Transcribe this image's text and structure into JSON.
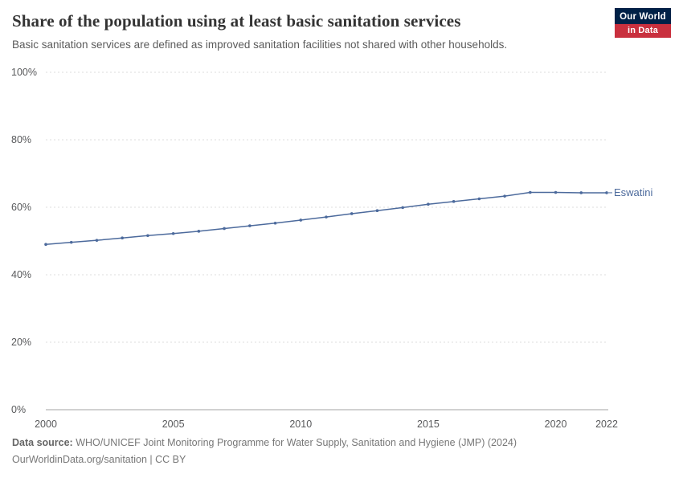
{
  "header": {
    "title": "Share of the population using at least basic sanitation services",
    "subtitle": "Basic sanitation services are defined as improved sanitation facilities not shared with other households."
  },
  "logo": {
    "line1": "Our World",
    "line2": "in Data"
  },
  "chart_data": {
    "type": "line",
    "title": "Share of the population using at least basic sanitation services",
    "x": [
      2000,
      2001,
      2002,
      2003,
      2004,
      2005,
      2006,
      2007,
      2008,
      2009,
      2010,
      2011,
      2012,
      2013,
      2014,
      2015,
      2016,
      2017,
      2018,
      2019,
      2020,
      2021,
      2022
    ],
    "series": [
      {
        "name": "Eswatini",
        "color": "#4c6a9c",
        "values": [
          49.0,
          49.6,
          50.2,
          50.9,
          51.6,
          52.2,
          52.9,
          53.7,
          54.5,
          55.3,
          56.2,
          57.1,
          58.1,
          59.0,
          59.9,
          60.9,
          61.7,
          62.5,
          63.3,
          64.4,
          64.4,
          64.3,
          64.3
        ]
      }
    ],
    "ylim": [
      0,
      100
    ],
    "yticks": [
      0,
      20,
      40,
      60,
      80,
      100
    ],
    "ytick_suffix": "%",
    "xticks": [
      2000,
      2005,
      2010,
      2015,
      2020,
      2022
    ],
    "grid": "horizontal-dashed",
    "legend_position": "end-of-line",
    "end_label": "Eswatini"
  },
  "footer": {
    "source_label": "Data source:",
    "source_text": " WHO/UNICEF Joint Monitoring Programme for Water Supply, Sanitation and Hygiene (JMP) (2024)",
    "license_text": "OurWorldinData.org/sanitation | CC BY"
  },
  "colors": {
    "line": "#4c6a9c",
    "grid": "#dcdcdc",
    "axis": "#a3a3a3",
    "tick_text": "#58595b",
    "logo_navy": "#002147",
    "logo_red": "#c9303e"
  }
}
